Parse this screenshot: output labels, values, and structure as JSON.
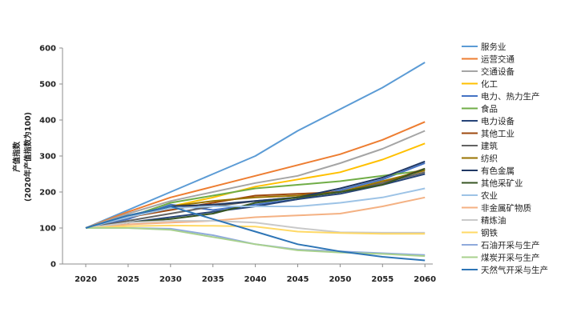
{
  "chart_data": {
    "type": "line",
    "title": "",
    "xlabel": "",
    "ylabel": "产值指数",
    "ylabel_sub": "(2020年产值指数为100)",
    "x": [
      "2020",
      "2025",
      "2030",
      "2035",
      "2040",
      "2045",
      "2050",
      "2055",
      "2060"
    ],
    "ylim": [
      0,
      600
    ],
    "yticks": [
      0,
      100,
      200,
      300,
      400,
      500,
      600
    ],
    "grid": false,
    "legend_position": "right",
    "series": [
      {
        "name": "服务业",
        "color": "#5b9bd5",
        "values": [
          100,
          150,
          200,
          250,
          300,
          370,
          430,
          490,
          560
        ]
      },
      {
        "name": "运营交通",
        "color": "#ed7d31",
        "values": [
          100,
          145,
          185,
          215,
          245,
          275,
          305,
          345,
          395
        ]
      },
      {
        "name": "交通设备",
        "color": "#a5a5a5",
        "values": [
          100,
          140,
          175,
          200,
          225,
          245,
          280,
          320,
          370
        ]
      },
      {
        "name": "化工",
        "color": "#ffc000",
        "values": [
          100,
          130,
          160,
          185,
          215,
          235,
          255,
          290,
          335
        ]
      },
      {
        "name": "电力、热力生产",
        "color": "#4472c4",
        "values": [
          100,
          125,
          165,
          150,
          165,
          180,
          205,
          235,
          280
        ]
      },
      {
        "name": "食品",
        "color": "#70ad47",
        "values": [
          100,
          130,
          170,
          190,
          210,
          220,
          230,
          245,
          260
        ]
      },
      {
        "name": "电力设备",
        "color": "#264478",
        "values": [
          100,
          115,
          130,
          145,
          160,
          180,
          195,
          220,
          250
        ]
      },
      {
        "name": "其他工业",
        "color": "#9e480e",
        "values": [
          100,
          130,
          150,
          170,
          190,
          195,
          200,
          225,
          265
        ]
      },
      {
        "name": "建筑",
        "color": "#636363",
        "values": [
          100,
          120,
          140,
          160,
          175,
          185,
          200,
          225,
          255
        ]
      },
      {
        "name": "纺织",
        "color": "#997300",
        "values": [
          100,
          135,
          160,
          175,
          185,
          190,
          200,
          230,
          260
        ]
      },
      {
        "name": "有色金属",
        "color": "#203864",
        "values": [
          100,
          130,
          160,
          165,
          175,
          185,
          210,
          240,
          285
        ]
      },
      {
        "name": "其他采矿业",
        "color": "#375623",
        "values": [
          100,
          115,
          125,
          140,
          170,
          185,
          200,
          220,
          265
        ]
      },
      {
        "name": "农业",
        "color": "#9dc3e6",
        "values": [
          100,
          130,
          155,
          160,
          160,
          160,
          170,
          185,
          210
        ]
      },
      {
        "name": "非金属矿物质",
        "color": "#f4b183",
        "values": [
          100,
          110,
          115,
          120,
          130,
          135,
          140,
          160,
          185
        ]
      },
      {
        "name": "精炼油",
        "color": "#c9c9c9",
        "values": [
          100,
          115,
          120,
          120,
          115,
          100,
          88,
          87,
          87
        ]
      },
      {
        "name": "钢铁",
        "color": "#ffd966",
        "values": [
          100,
          105,
          107,
          106,
          104,
          90,
          86,
          84,
          84
        ]
      },
      {
        "name": "石油开采与生产",
        "color": "#8faadc",
        "values": [
          100,
          100,
          98,
          80,
          55,
          40,
          35,
          30,
          25
        ]
      },
      {
        "name": "煤炭开采与生产",
        "color": "#a9d18e",
        "values": [
          100,
          100,
          95,
          75,
          55,
          38,
          32,
          28,
          22
        ]
      },
      {
        "name": "天然气开采与生产",
        "color": "#2e75b6",
        "values": [
          100,
          135,
          160,
          125,
          90,
          55,
          35,
          20,
          10
        ]
      }
    ]
  }
}
